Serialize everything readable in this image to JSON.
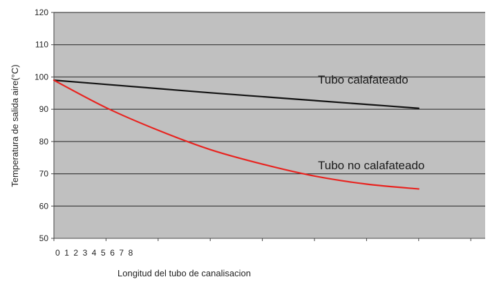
{
  "chart_data": {
    "type": "line",
    "title": "",
    "xlabel": "Longitud del tubo de canalisacion",
    "ylabel": "Temperatura de salida aire(°C)",
    "ylim": [
      50,
      120
    ],
    "y_ticks": [
      "120",
      "110",
      "100",
      "90",
      "80",
      "70",
      "60",
      "50"
    ],
    "x_tick_labels": [
      "0",
      "1",
      "2",
      "3",
      "4",
      "5",
      "6",
      "7",
      "8"
    ],
    "grid": "horizontal",
    "plot_background": "#c0c0c0",
    "series": [
      {
        "name": "Tubo calafateado",
        "color": "#111111",
        "x": [
          0,
          1,
          2,
          3,
          4,
          5,
          6,
          7
        ],
        "values": [
          99,
          97.7,
          96.4,
          95.1,
          93.9,
          92.7,
          91.5,
          90.3
        ]
      },
      {
        "name": "Tubo no calafateado",
        "color": "#e8231f",
        "x": [
          0,
          1,
          2,
          3,
          4,
          5,
          6,
          7
        ],
        "values": [
          99,
          90.5,
          83.5,
          77.5,
          73,
          69.3,
          66.8,
          65.3
        ]
      }
    ]
  }
}
